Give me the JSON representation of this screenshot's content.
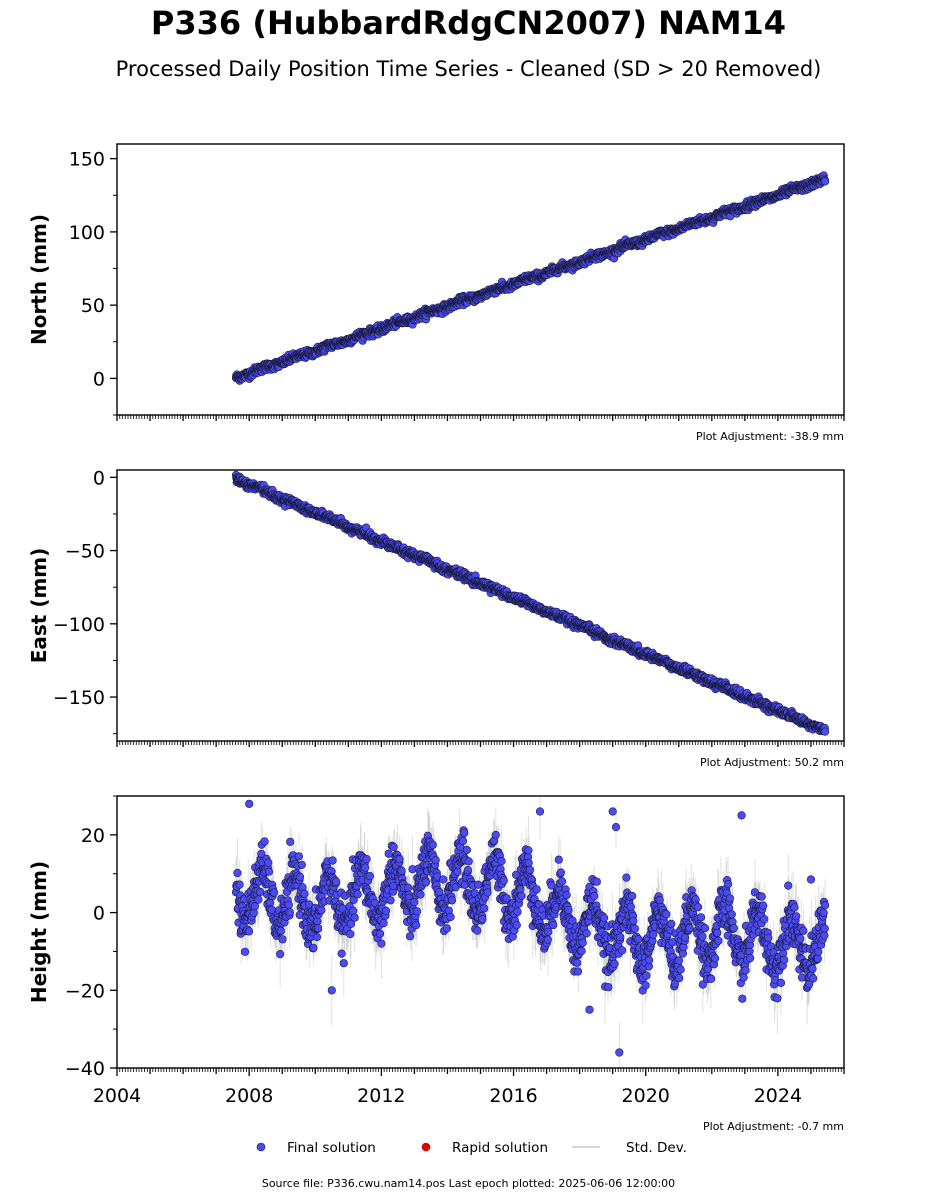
{
  "title": "P336 (HubbardRdgCN2007) NAM14",
  "subtitle": "Processed Daily Position Time Series - Cleaned (SD > 20 Removed)",
  "source_note": "Source file: P336.cwu.nam14.pos  Last epoch plotted: 2025-06-06 12:00:00",
  "legend": {
    "items": [
      {
        "label": "Final solution",
        "color": "#4b4bf5"
      },
      {
        "label": "Rapid solution",
        "color": "#e00000"
      },
      {
        "label": "Std. Dev.",
        "color": "#c8c8c8"
      }
    ]
  },
  "chart_data": [
    {
      "type": "scatter",
      "ylabel": "North (mm)",
      "xlim": [
        2004,
        2026
      ],
      "ylim": [
        -25,
        160
      ],
      "yticks": [
        0,
        50,
        100,
        150
      ],
      "adjustment": "Plot Adjustment: -38.9 mm",
      "x_start": 2007.6,
      "x_end": 2025.43,
      "y_start": 0.5,
      "y_end": 136,
      "noise_mm": 1.3,
      "annual_amp_mm": 0.6,
      "show_xticklabels": false
    },
    {
      "type": "scatter",
      "ylabel": "East (mm)",
      "xlim": [
        2004,
        2026
      ],
      "ylim": [
        -180,
        5
      ],
      "yticks": [
        0,
        -50,
        -100,
        -150
      ],
      "adjustment": "Plot Adjustment: 50.2 mm",
      "x_start": 2007.6,
      "x_end": 2025.43,
      "y_start": -1,
      "y_end": -173,
      "noise_mm": 1.3,
      "annual_amp_mm": 0.6,
      "show_xticklabels": false
    },
    {
      "type": "scatter",
      "ylabel": "Height (mm)",
      "xlim": [
        2004,
        2026
      ],
      "ylim": [
        -40,
        30
      ],
      "yticks": [
        20,
        0,
        -20,
        -40
      ],
      "xticks": [
        2004,
        2008,
        2012,
        2016,
        2020,
        2024
      ],
      "adjustment": "Plot Adjustment: -0.7 mm",
      "x_start": 2007.6,
      "x_end": 2025.43,
      "trend_points": [
        [
          2007.6,
          5
        ],
        [
          2010,
          2
        ],
        [
          2014,
          8
        ],
        [
          2016,
          6
        ],
        [
          2018,
          -3
        ],
        [
          2020,
          -7
        ],
        [
          2022,
          -5
        ],
        [
          2025.43,
          -9
        ]
      ],
      "noise_mm": 3.2,
      "annual_amp_mm": 7,
      "outliers": [
        [
          2008.0,
          28
        ],
        [
          2016.8,
          26
        ],
        [
          2019.0,
          26
        ],
        [
          2019.1,
          22
        ],
        [
          2022.9,
          25
        ],
        [
          2019.2,
          -36
        ],
        [
          2018.3,
          -25
        ],
        [
          2010.5,
          -20
        ],
        [
          2025.0,
          8.5
        ]
      ],
      "show_xticklabels": true
    }
  ]
}
